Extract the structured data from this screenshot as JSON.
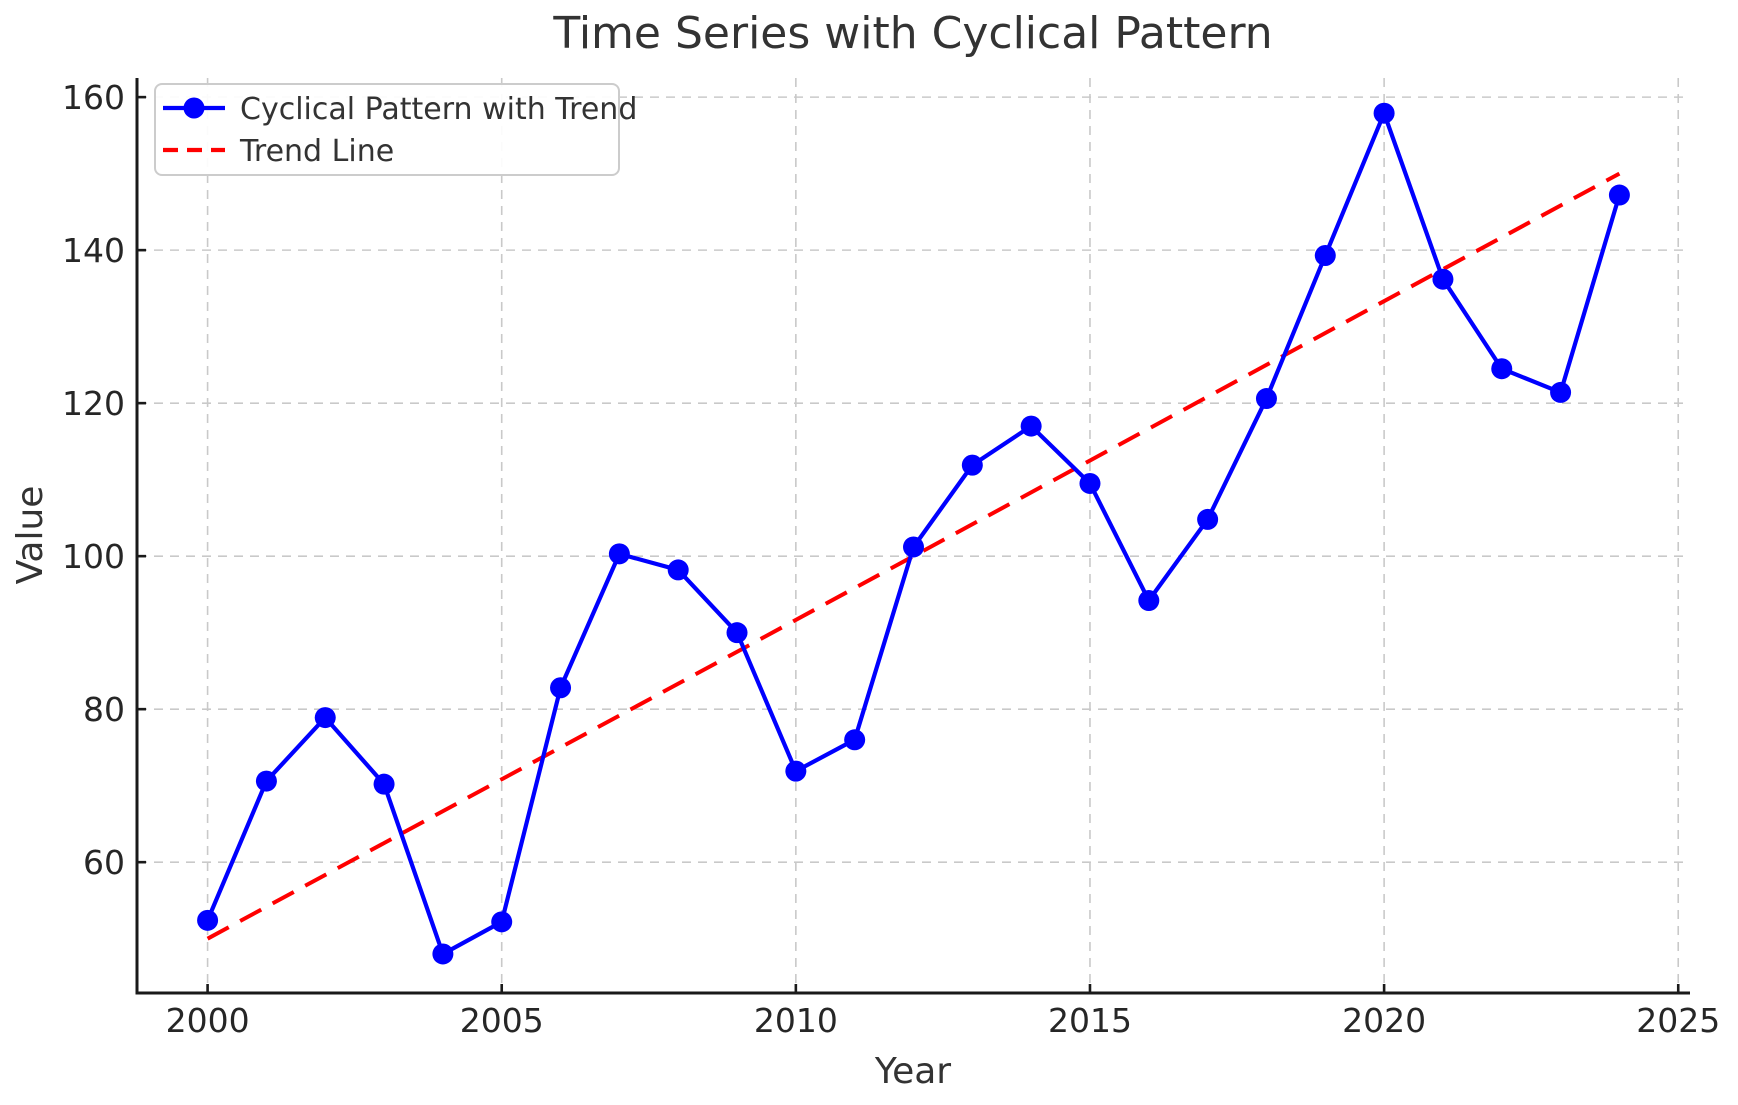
{
  "chart_data": {
    "type": "line",
    "title": "Time Series with Cyclical Pattern",
    "xlabel": "Year",
    "ylabel": "Value",
    "x": [
      2000,
      2001,
      2002,
      2003,
      2004,
      2005,
      2006,
      2007,
      2008,
      2009,
      2010,
      2011,
      2012,
      2013,
      2014,
      2015,
      2016,
      2017,
      2018,
      2019,
      2020,
      2021,
      2022,
      2023,
      2024
    ],
    "series": [
      {
        "name": "Cyclical Pattern with Trend",
        "color": "#0000ff",
        "line_style": "solid",
        "markers": true,
        "values": [
          52.4,
          70.6,
          78.9,
          70.2,
          48.0,
          52.2,
          82.8,
          100.3,
          98.2,
          90.0,
          71.9,
          76.0,
          101.2,
          111.9,
          117.0,
          109.5,
          94.2,
          104.8,
          120.6,
          139.3,
          157.9,
          136.2,
          124.5,
          121.4,
          147.2
        ]
      },
      {
        "name": "Trend Line",
        "color": "#ff0000",
        "line_style": "dashed",
        "markers": false,
        "x": [
          2000,
          2024
        ],
        "values": [
          50.0,
          150.0
        ]
      }
    ],
    "xticks": [
      2000,
      2005,
      2010,
      2015,
      2020,
      2025
    ],
    "yticks": [
      60,
      80,
      100,
      120,
      140,
      160
    ],
    "xlim": [
      1998.8,
      2025.2
    ],
    "ylim": [
      42.9,
      162.5
    ],
    "grid": true,
    "legend_position": "upper left"
  },
  "colors": {
    "background": "#ffffff",
    "grid": "#c9c9c9",
    "spine": "#1a1a1a",
    "title_text": "#333333",
    "tick_text": "#262626",
    "legend_border": "#cccccc",
    "legend_background": "#ffffff"
  }
}
